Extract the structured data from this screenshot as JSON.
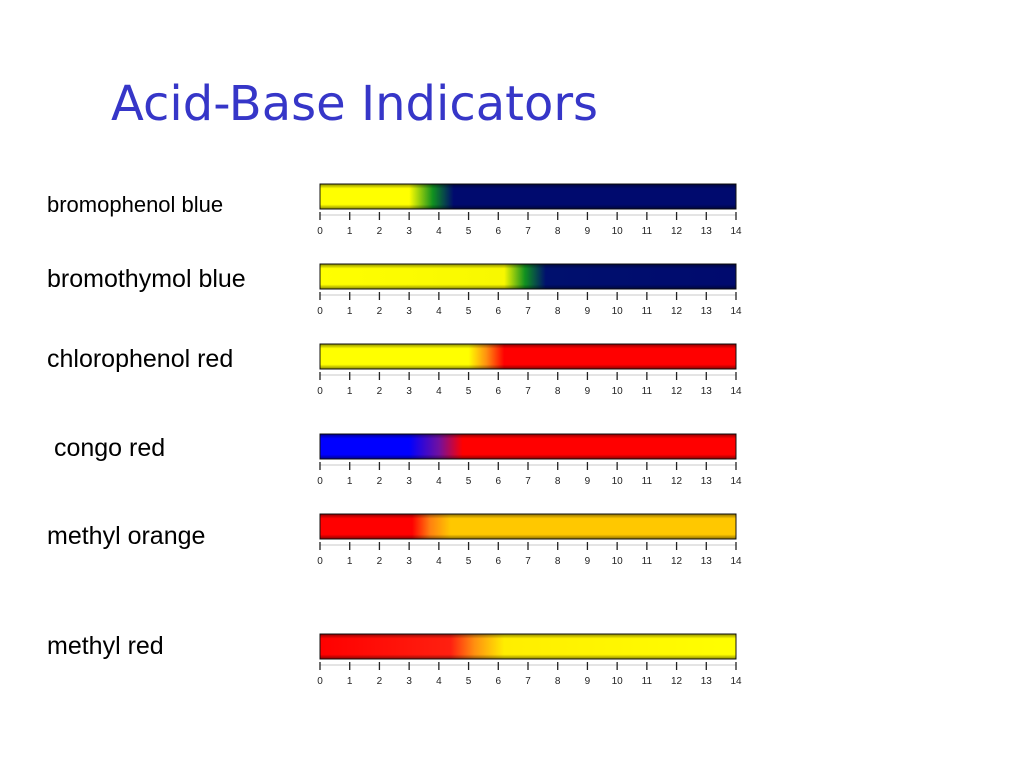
{
  "title": "Acid-Base Indicators",
  "axis": {
    "min": 0,
    "max": 14,
    "ticks": [
      "0",
      "1",
      "2",
      "3",
      "4",
      "5",
      "6",
      "7",
      "8",
      "9",
      "10",
      "11",
      "12",
      "13",
      "14"
    ]
  },
  "indicators": [
    {
      "name": "bromophenol blue",
      "stops": [
        [
          0,
          "#ffff00"
        ],
        [
          3.0,
          "#ffff00"
        ],
        [
          3.8,
          "#109020"
        ],
        [
          4.5,
          "#000a6e"
        ],
        [
          14,
          "#000a6e"
        ]
      ]
    },
    {
      "name": "bromothymol blue",
      "stops": [
        [
          0,
          "#ffff00"
        ],
        [
          6.2,
          "#f8f800"
        ],
        [
          6.9,
          "#109020"
        ],
        [
          7.6,
          "#00106e"
        ],
        [
          14,
          "#000a6e"
        ]
      ]
    },
    {
      "name": "chlorophenol red",
      "stops": [
        [
          0,
          "#ffff00"
        ],
        [
          5.0,
          "#ffff00"
        ],
        [
          5.6,
          "#ff9010"
        ],
        [
          6.2,
          "#ff0000"
        ],
        [
          14,
          "#ff0000"
        ]
      ]
    },
    {
      "name": " congo red",
      "stops": [
        [
          0,
          "#0000ff"
        ],
        [
          3.0,
          "#0000ff"
        ],
        [
          4.0,
          "#7010a0"
        ],
        [
          4.8,
          "#ff0000"
        ],
        [
          14,
          "#ff0000"
        ]
      ]
    },
    {
      "name": "methyl orange",
      "stops": [
        [
          0,
          "#ff0000"
        ],
        [
          3.1,
          "#ff0000"
        ],
        [
          3.7,
          "#ff8010"
        ],
        [
          4.4,
          "#ffc800"
        ],
        [
          14,
          "#ffc800"
        ]
      ]
    },
    {
      "name": "methyl red",
      "stops": [
        [
          0,
          "#ff0000"
        ],
        [
          4.4,
          "#ff2010"
        ],
        [
          5.2,
          "#ff9010"
        ],
        [
          6.2,
          "#ffee00"
        ],
        [
          14,
          "#ffff00"
        ]
      ]
    }
  ]
}
